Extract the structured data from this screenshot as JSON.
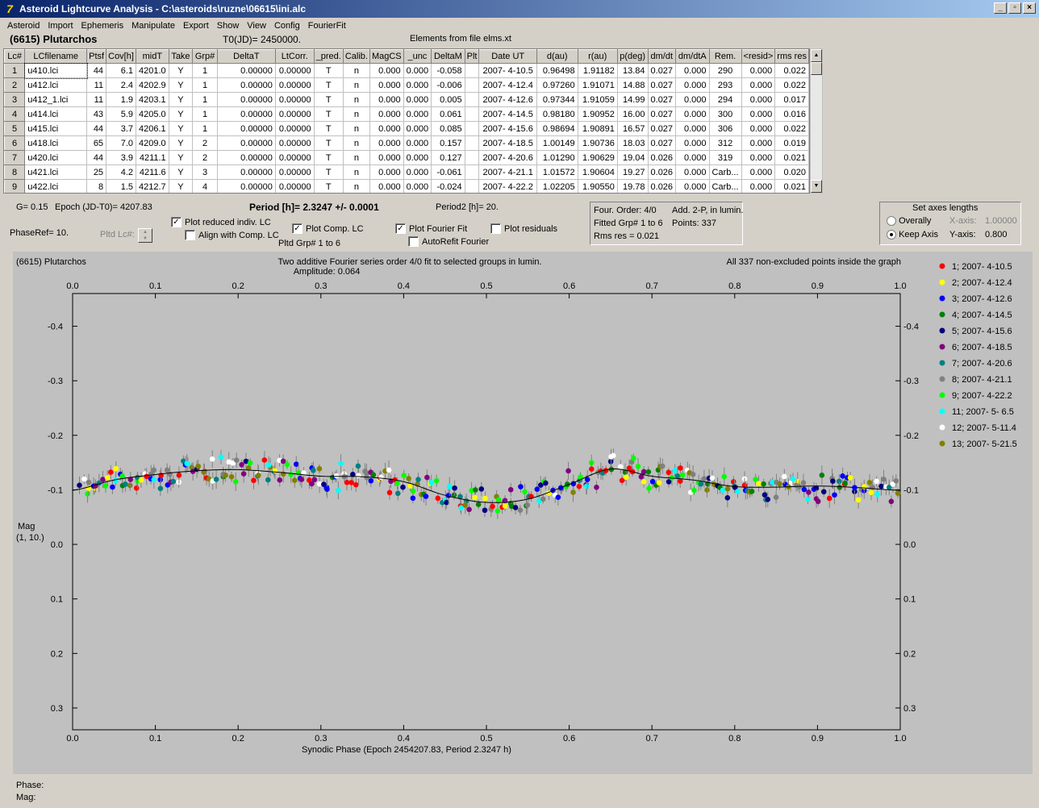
{
  "window": {
    "title": "Asteroid Lightcurve Analysis - C:\\asteroids\\ruzne\\06615\\ini.alc"
  },
  "menu": [
    "Asteroid",
    "Import",
    "Ephemeris",
    "Manipulate",
    "Export",
    "Show",
    "View",
    "Config",
    "FourierFit"
  ],
  "header": {
    "asteroid": "(6615) Plutarchos",
    "t0": "T0(JD)= 2450000.",
    "elements": "Elements from file elms.xt"
  },
  "table": {
    "columns": [
      "Lc#",
      "LCfilename",
      "Ptsf",
      "Cov[h]",
      "midT",
      "Take",
      "Grp#",
      "DeltaT",
      "LtCorr.",
      "_pred.",
      "Calib.",
      "MagCS",
      "_unc",
      "DeltaM",
      "Plt",
      "Date UT",
      "d(au)",
      "r(au)",
      "p(deg)",
      "dm/dt",
      "dm/dtA",
      "Rem.",
      "<resid>",
      "rms res"
    ],
    "rows": [
      [
        "1",
        "u410.lci",
        "44",
        "6.1",
        "4201.0",
        "Y",
        "1",
        "0.00000",
        "0.00000",
        "T",
        "n",
        "0.000",
        "0.000",
        "-0.058",
        "",
        "2007- 4-10.5",
        "0.96498",
        "1.91182",
        "13.84",
        "0.027",
        "0.000",
        "290",
        "0.000",
        "0.022"
      ],
      [
        "2",
        "u412.lci",
        "11",
        "2.4",
        "4202.9",
        "Y",
        "1",
        "0.00000",
        "0.00000",
        "T",
        "n",
        "0.000",
        "0.000",
        "-0.006",
        "",
        "2007- 4-12.4",
        "0.97260",
        "1.91071",
        "14.88",
        "0.027",
        "0.000",
        "293",
        "0.000",
        "0.022"
      ],
      [
        "3",
        "u412_1.lci",
        "11",
        "1.9",
        "4203.1",
        "Y",
        "1",
        "0.00000",
        "0.00000",
        "T",
        "n",
        "0.000",
        "0.000",
        "0.005",
        "",
        "2007- 4-12.6",
        "0.97344",
        "1.91059",
        "14.99",
        "0.027",
        "0.000",
        "294",
        "0.000",
        "0.017"
      ],
      [
        "4",
        "u414.lci",
        "43",
        "5.9",
        "4205.0",
        "Y",
        "1",
        "0.00000",
        "0.00000",
        "T",
        "n",
        "0.000",
        "0.000",
        "0.061",
        "",
        "2007- 4-14.5",
        "0.98180",
        "1.90952",
        "16.00",
        "0.027",
        "0.000",
        "300",
        "0.000",
        "0.016"
      ],
      [
        "5",
        "u415.lci",
        "44",
        "3.7",
        "4206.1",
        "Y",
        "1",
        "0.00000",
        "0.00000",
        "T",
        "n",
        "0.000",
        "0.000",
        "0.085",
        "",
        "2007- 4-15.6",
        "0.98694",
        "1.90891",
        "16.57",
        "0.027",
        "0.000",
        "306",
        "0.000",
        "0.022"
      ],
      [
        "6",
        "u418.lci",
        "65",
        "7.0",
        "4209.0",
        "Y",
        "2",
        "0.00000",
        "0.00000",
        "T",
        "n",
        "0.000",
        "0.000",
        "0.157",
        "",
        "2007- 4-18.5",
        "1.00149",
        "1.90736",
        "18.03",
        "0.027",
        "0.000",
        "312",
        "0.000",
        "0.019"
      ],
      [
        "7",
        "u420.lci",
        "44",
        "3.9",
        "4211.1",
        "Y",
        "2",
        "0.00000",
        "0.00000",
        "T",
        "n",
        "0.000",
        "0.000",
        "0.127",
        "",
        "2007- 4-20.6",
        "1.01290",
        "1.90629",
        "19.04",
        "0.026",
        "0.000",
        "319",
        "0.000",
        "0.021"
      ],
      [
        "8",
        "u421.lci",
        "25",
        "4.2",
        "4211.6",
        "Y",
        "3",
        "0.00000",
        "0.00000",
        "T",
        "n",
        "0.000",
        "0.000",
        "-0.061",
        "",
        "2007- 4-21.1",
        "1.01572",
        "1.90604",
        "19.27",
        "0.026",
        "0.000",
        "Carb...",
        "0.000",
        "0.020"
      ],
      [
        "9",
        "u422.lci",
        "8",
        "1.5",
        "4212.7",
        "Y",
        "4",
        "0.00000",
        "0.00000",
        "T",
        "n",
        "0.000",
        "0.000",
        "-0.024",
        "",
        "2007- 4-22.2",
        "1.02205",
        "1.90550",
        "19.78",
        "0.026",
        "0.000",
        "Carb...",
        "0.000",
        "0.021"
      ]
    ]
  },
  "controls": {
    "g": "G= 0.15",
    "epoch": "Epoch (JD-T0)= 4207.83",
    "period": "Period [h]= 2.3247 +/- 0.0001",
    "period2": "Period2 [h]= 20.",
    "phaseref": "PhaseRef= 10.",
    "pltd_lc": "Pltd Lc#:",
    "plot_reduced": "Plot reduced indiv. LC",
    "align_comp": "Align with Comp. LC",
    "plot_comp": "Plot Comp. LC",
    "pltd_grp": "Pltd Grp#  1   to   6",
    "plot_fourier": "Plot Fourier Fit",
    "autorefit": "AutoRefit Fourier",
    "plot_residuals": "Plot residuals",
    "four_order": "Four. Order:  4/0",
    "add_2p": "Add. 2-P, in lumin.",
    "fitted_grp": "Fitted Grp# 1 to 6",
    "points": "Points: 337",
    "rms_res": "Rms res      = 0.021",
    "axes_title": "Set axes lengths",
    "overally": "Overally",
    "keep_axis": "Keep Axis",
    "x_axis_label": "X-axis:",
    "x_axis_value": "1.00000",
    "y_axis_label": "Y-axis:",
    "y_axis_value": "0.800"
  },
  "chart_data": {
    "type": "scatter",
    "name": "(6615) Plutarchos",
    "title": "Two additive Fourier series order 4/0 fit to selected groups in lumin.",
    "subtitle": "Amplitude: 0.064",
    "note": "All 337 non-excluded points inside the graph",
    "xlabel": "Synodic Phase (Epoch 2454207.83, Period 2.3247 h)",
    "ylabel": "Mag",
    "ylabel2": "(1, 10.)",
    "xlim": [
      0,
      1
    ],
    "ylim": [
      -0.46,
      0.34
    ],
    "xticks": [
      "0.0",
      "0.1",
      "0.2",
      "0.3",
      "0.4",
      "0.5",
      "0.6",
      "0.7",
      "0.8",
      "0.9",
      "1.0"
    ],
    "yticks": [
      "-0.4",
      "-0.3",
      "-0.2",
      "-0.1",
      "0.0",
      "0.1",
      "0.2",
      "0.3"
    ],
    "grid": false,
    "legend_position": "right",
    "fourier_curve": [
      [
        0,
        -0.099
      ],
      [
        0.05,
        -0.118
      ],
      [
        0.1,
        -0.128
      ],
      [
        0.15,
        -0.135
      ],
      [
        0.2,
        -0.137
      ],
      [
        0.25,
        -0.132
      ],
      [
        0.3,
        -0.125
      ],
      [
        0.35,
        -0.124
      ],
      [
        0.4,
        -0.115
      ],
      [
        0.45,
        -0.09
      ],
      [
        0.5,
        -0.077
      ],
      [
        0.55,
        -0.083
      ],
      [
        0.6,
        -0.11
      ],
      [
        0.65,
        -0.138
      ],
      [
        0.7,
        -0.125
      ],
      [
        0.75,
        -0.118
      ],
      [
        0.8,
        -0.106
      ],
      [
        0.85,
        -0.105
      ],
      [
        0.9,
        -0.107
      ],
      [
        0.95,
        -0.104
      ],
      [
        1,
        -0.099
      ]
    ],
    "series": [
      {
        "name": "1; 2007- 4-10.5",
        "color": "#ff0000"
      },
      {
        "name": "2; 2007- 4-12.4",
        "color": "#ffff00"
      },
      {
        "name": "3; 2007- 4-12.6",
        "color": "#0000ff"
      },
      {
        "name": "4; 2007- 4-14.5",
        "color": "#008000"
      },
      {
        "name": "5; 2007- 4-15.6",
        "color": "#000080"
      },
      {
        "name": "6; 2007- 4-18.5",
        "color": "#800080"
      },
      {
        "name": "7; 2007- 4-20.6",
        "color": "#008080"
      },
      {
        "name": "8; 2007- 4-21.1",
        "color": "#808080"
      },
      {
        "name": "9; 2007- 4-22.2",
        "color": "#00ff00"
      },
      {
        "name": "11; 2007- 5- 6.5",
        "color": "#00ffff"
      },
      {
        "name": "12; 2007- 5-11.4",
        "color": "#ffffff"
      },
      {
        "name": "13; 2007- 5-21.5",
        "color": "#808000"
      }
    ],
    "point_count": 337
  },
  "status": {
    "phase": "Phase:",
    "mag": "Mag:"
  }
}
